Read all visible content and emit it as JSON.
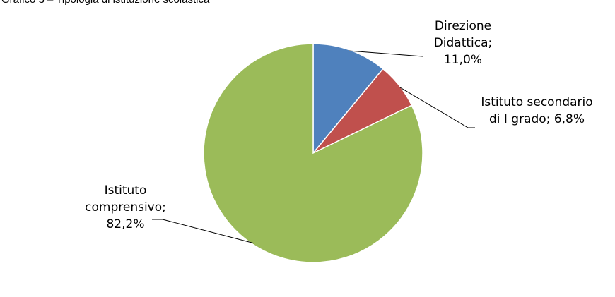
{
  "chart_data": {
    "type": "pie",
    "title": "Grafico 3 – Tipologia di istituzione scolastica",
    "categories": [
      "Direzione Didattica",
      "Istituto secondario di I grado",
      "Istituto comprensivo"
    ],
    "values": [
      11.0,
      6.8,
      82.2
    ],
    "value_labels": [
      "Direzione Didattica; 11,0%",
      "Istituto secondario di I grado; 6,8%",
      "Istituto comprensivo; 82,2%"
    ],
    "colors": [
      "#4f81bd",
      "#c0504d",
      "#9bbb59"
    ]
  }
}
